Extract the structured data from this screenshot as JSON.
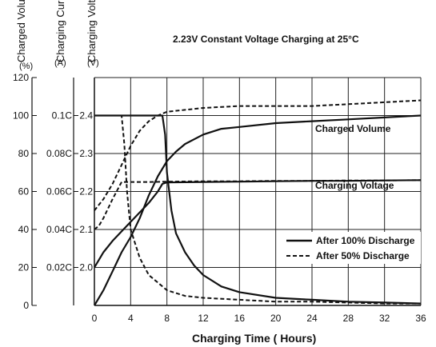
{
  "chart_data": {
    "type": "line",
    "title": "2.23V Constant Voltage Charging at 25°C",
    "xlabel": "Charging Time ( Hours)",
    "xlim": [
      0,
      36
    ],
    "x_ticks": [
      0,
      4,
      8,
      12,
      16,
      20,
      24,
      28,
      32,
      36
    ],
    "grid": true,
    "legend_position": "bottom-right",
    "y_axes": [
      {
        "label": "Charged Volume",
        "unit": "(%)",
        "range": [
          0,
          120
        ],
        "ticks": [
          0,
          20,
          40,
          60,
          80,
          100,
          120
        ],
        "tick_labels": [
          "0",
          "20",
          "40",
          "60",
          "80",
          "100",
          "120"
        ]
      },
      {
        "label": "Charging Current",
        "unit": "(A)",
        "range": [
          0,
          0.12
        ],
        "ticks": [
          0.02,
          0.04,
          0.06,
          0.08,
          0.1
        ],
        "tick_labels": [
          "0.02C",
          "0.04C",
          "0.06C",
          "0.08C",
          "0.1C"
        ]
      },
      {
        "label": "Charging Voltage",
        "unit": "(V)",
        "range": [
          1.9,
          2.5
        ],
        "ticks": [
          2.0,
          2.1,
          2.2,
          2.3,
          2.4
        ],
        "tick_labels": [
          "2.0",
          "2.1",
          "2.2",
          "2.3",
          "2.4"
        ]
      }
    ],
    "annotations": [
      "Charged Volume",
      "Charging Voltage"
    ],
    "legend": [
      {
        "label": "After 100% Discharge",
        "style": "solid"
      },
      {
        "label": "After 50% Discharge",
        "style": "dashed"
      }
    ],
    "series": [
      {
        "quantity": "charged_volume",
        "style": "dashed",
        "axis": 0,
        "x": [
          0,
          1,
          2,
          3,
          4,
          5,
          6,
          7,
          8,
          10,
          12,
          16,
          20,
          24,
          28,
          32,
          36
        ],
        "y": [
          50,
          56,
          64,
          74,
          84,
          92,
          97,
          100,
          102,
          103,
          104,
          105,
          105,
          105,
          106,
          107,
          108
        ]
      },
      {
        "quantity": "charged_volume",
        "style": "solid",
        "axis": 0,
        "x": [
          0,
          1,
          2,
          3,
          4,
          5,
          6,
          7,
          8,
          9,
          10,
          12,
          14,
          16,
          20,
          24,
          28,
          32,
          36
        ],
        "y": [
          0,
          8,
          18,
          28,
          36,
          46,
          58,
          68,
          76,
          81,
          85,
          90,
          93,
          94,
          96,
          97,
          98,
          99,
          100
        ]
      },
      {
        "quantity": "charging_voltage",
        "style": "dashed",
        "axis": 2,
        "x": [
          0,
          0.5,
          1,
          2,
          3,
          4,
          6,
          8,
          12,
          16,
          20,
          24,
          28,
          32,
          36
        ],
        "y": [
          2.1,
          2.11,
          2.13,
          2.18,
          2.225,
          2.225,
          2.225,
          2.226,
          2.227,
          2.227,
          2.228,
          2.228,
          2.229,
          2.229,
          2.23
        ]
      },
      {
        "quantity": "charging_voltage",
        "style": "solid",
        "axis": 2,
        "x": [
          0,
          1,
          2,
          3,
          4,
          5,
          6,
          7,
          7.5,
          8,
          12,
          16,
          20,
          24,
          28,
          32,
          36
        ],
        "y": [
          2.0,
          2.04,
          2.07,
          2.095,
          2.12,
          2.145,
          2.17,
          2.2,
          2.22,
          2.224,
          2.225,
          2.226,
          2.227,
          2.228,
          2.228,
          2.229,
          2.23
        ]
      },
      {
        "quantity": "charging_current",
        "style": "dashed",
        "axis": 1,
        "x": [
          0,
          1,
          2,
          3,
          3.3,
          3.6,
          4,
          5,
          6,
          8,
          10,
          12,
          16,
          20,
          24,
          28,
          32,
          36
        ],
        "y": [
          0.1,
          0.1,
          0.1,
          0.1,
          0.085,
          0.06,
          0.04,
          0.025,
          0.016,
          0.008,
          0.005,
          0.004,
          0.003,
          0.002,
          0.002,
          0.0015,
          0.001,
          0.001
        ]
      },
      {
        "quantity": "charging_current",
        "style": "solid",
        "axis": 1,
        "x": [
          0,
          2,
          4,
          6,
          7.5,
          7.8,
          8,
          8.5,
          9,
          10,
          11,
          12,
          14,
          16,
          20,
          24,
          28,
          32,
          36
        ],
        "y": [
          0.1,
          0.1,
          0.1,
          0.1,
          0.1,
          0.09,
          0.07,
          0.05,
          0.038,
          0.028,
          0.021,
          0.016,
          0.01,
          0.007,
          0.004,
          0.003,
          0.002,
          0.0015,
          0.001
        ]
      }
    ]
  }
}
